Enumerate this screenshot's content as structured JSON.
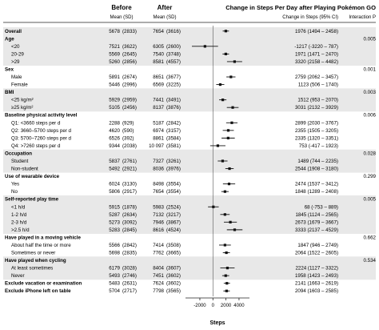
{
  "header": {
    "before": "Before",
    "after": "After",
    "before_sub": "Mean (SD)",
    "after_sub": "Mean (SD)",
    "title": "Change in Steps Per Day after Playing Pokémon GO",
    "change_sub": "Change in Steps (95% CI)",
    "interaction_sub": "Interaction P"
  },
  "xaxis": {
    "label": "Steps",
    "ticks": [
      -2000,
      0,
      2000,
      4000
    ],
    "xlim": [
      -4200,
      5600
    ]
  },
  "colors": {
    "shade": "#e8e8e8",
    "mark": "#111111",
    "zero_line": "#555555"
  },
  "chart_data": {
    "type": "forest",
    "xlabel": "Steps",
    "rows": [
      {
        "label": "Overall",
        "header": true,
        "n_before": "5678",
        "sd_before": "(2833)",
        "n_after": "7654",
        "sd_after": "(3616)",
        "est": 1976,
        "lo": 1494,
        "hi": 2458,
        "ci_text": "1976 (1494 – 2458)",
        "p": "",
        "shade": true
      },
      {
        "label": "Age",
        "header": true,
        "shade": true,
        "p": "0.005"
      },
      {
        "label": "<20",
        "sub": true,
        "n_before": "7521",
        "sd_before": "(3622)",
        "n_after": "6305",
        "sd_after": "(2600)",
        "est": -1217,
        "lo": -3220,
        "hi": 787,
        "ci_text": "-1217 (-3220 – 787)",
        "shade": true
      },
      {
        "label": "20-29",
        "sub": true,
        "n_before": "5569",
        "sd_before": "(2645)",
        "n_after": "7540",
        "sd_after": "(3748)",
        "est": 1971,
        "lo": 1471,
        "hi": 2470,
        "ci_text": "1971 (1471 – 2470)",
        "shade": true
      },
      {
        "label": ">29",
        "sub": true,
        "n_before": "5260",
        "sd_before": "(2856)",
        "n_after": "8581",
        "sd_after": "(4557)",
        "est": 3320,
        "lo": 2158,
        "hi": 4482,
        "ci_text": "3320 (2158 – 4482)",
        "shade": true
      },
      {
        "label": "Sex",
        "header": true,
        "p": "0.001"
      },
      {
        "label": "Male",
        "sub": true,
        "n_before": "5891",
        "sd_before": "(2674)",
        "n_after": "8651",
        "sd_after": "(3677)",
        "est": 2759,
        "lo": 2062,
        "hi": 3457,
        "ci_text": "2759 (2062 – 3457)"
      },
      {
        "label": "Female",
        "sub": true,
        "n_before": "5446",
        "sd_before": "(2996)",
        "n_after": "6569",
        "sd_after": "(3225)",
        "est": 1123,
        "lo": 506,
        "hi": 1740,
        "ci_text": "1123 (506 – 1740)"
      },
      {
        "label": "BMI",
        "header": true,
        "shade": true,
        "p": "0.003"
      },
      {
        "label": "<25 kg/m²",
        "sub": true,
        "n_before": "5929",
        "sd_before": "(2959)",
        "n_after": "7441",
        "sd_after": "(3491)",
        "est": 1512,
        "lo": 953,
        "hi": 2070,
        "ci_text": "1512 (953 – 2070)",
        "shade": true
      },
      {
        "label": "≥25 kg/m²",
        "sub": true,
        "n_before": "5105",
        "sd_before": "(2456)",
        "n_after": "8137",
        "sd_after": "(3876)",
        "est": 3031,
        "lo": 2132,
        "hi": 3929,
        "ci_text": "3031 (2132 – 3929)",
        "shade": true
      },
      {
        "label": "Baseline physical activity level",
        "header": true,
        "p": "0.006"
      },
      {
        "label": "Q1: <3660 steps per d",
        "sub": true,
        "n_before": "2288",
        "sd_before": "(929)",
        "n_after": "5187",
        "sd_after": "(2842)",
        "est": 2899,
        "lo": 2030,
        "hi": 3767,
        "ci_text": "2899 (2030 – 3767)"
      },
      {
        "label": "Q2: 3660–5700 steps per d",
        "sub": true,
        "n_before": "4620",
        "sd_before": "(590)",
        "n_after": "6974",
        "sd_after": "(3157)",
        "est": 2355,
        "lo": 1505,
        "hi": 3205,
        "ci_text": "2355 (1505 – 3205)"
      },
      {
        "label": "Q3: 5700–7260 steps per d",
        "sub": true,
        "n_before": "6526",
        "sd_before": "(392)",
        "n_after": "8861",
        "sd_after": "(3584)",
        "est": 2335,
        "lo": 1320,
        "hi": 3351,
        "ci_text": "2335 (1320 – 3351)"
      },
      {
        "label": "Q4: >7260 steps per d",
        "sub": true,
        "n_before": "9344",
        "sd_before": "(2038)",
        "n_after": "10 097",
        "sd_after": "(3581)",
        "est": 753,
        "lo": -417,
        "hi": 1923,
        "ci_text": "753 (-417 – 1923)"
      },
      {
        "label": "Occupation",
        "header": true,
        "shade": true,
        "p": "0.028"
      },
      {
        "label": "Student",
        "sub": true,
        "n_before": "5837",
        "sd_before": "(2761)",
        "n_after": "7327",
        "sd_after": "(3261)",
        "est": 1489,
        "lo": 744,
        "hi": 2235,
        "ci_text": "1489 (744 – 2235)",
        "shade": true
      },
      {
        "label": "Non-student",
        "sub": true,
        "n_before": "5492",
        "sd_before": "(2921)",
        "n_after": "8036",
        "sd_after": "(3976)",
        "est": 2544,
        "lo": 1908,
        "hi": 3180,
        "ci_text": "2544 (1908 – 3180)",
        "shade": true
      },
      {
        "label": "Use of wearable device",
        "header": true,
        "p": "0.299"
      },
      {
        "label": "Yes",
        "sub": true,
        "n_before": "6024",
        "sd_before": "(3130)",
        "n_after": "8498",
        "sd_after": "(3554)",
        "est": 2474,
        "lo": 1537,
        "hi": 3412,
        "ci_text": "2474 (1537 – 3412)"
      },
      {
        "label": "No",
        "sub": true,
        "n_before": "5806",
        "sd_before": "(2917)",
        "n_after": "7654",
        "sd_after": "(3554)",
        "est": 1848,
        "lo": 1289,
        "hi": 2408,
        "ci_text": "1848 (1289 – 2408)"
      },
      {
        "label": "Self-reported play time",
        "header": true,
        "shade": true,
        "p": "0.005"
      },
      {
        "label": "<1 h/d",
        "sub": true,
        "n_before": "5915",
        "sd_before": "(1878)",
        "n_after": "5983",
        "sd_after": "(2524)",
        "est": 68,
        "lo": -753,
        "hi": 889,
        "ci_text": "68 (-753 – 889)",
        "shade": true
      },
      {
        "label": "1-2 h/d",
        "sub": true,
        "n_before": "5287",
        "sd_before": "(2634)",
        "n_after": "7132",
        "sd_after": "(3217)",
        "est": 1845,
        "lo": 1124,
        "hi": 2565,
        "ci_text": "1845 (1124 – 2565)",
        "shade": true
      },
      {
        "label": "2-3 h/d",
        "sub": true,
        "n_before": "5273",
        "sd_before": "(3092)",
        "n_after": "7946",
        "sd_after": "(3867)",
        "est": 2673,
        "lo": 1679,
        "hi": 3667,
        "ci_text": "2673 (1679 – 3667)",
        "shade": true
      },
      {
        "label": ">2.5 h/d",
        "sub": true,
        "n_before": "5283",
        "sd_before": "(2845)",
        "n_after": "8616",
        "sd_after": "(4524)",
        "est": 3333,
        "lo": 2137,
        "hi": 4529,
        "ci_text": "3333 (2137 – 4529)",
        "shade": true
      },
      {
        "label": "Have played in a moving vehicle",
        "header": true,
        "p": "0.662"
      },
      {
        "label": "About half the time or more",
        "sub": true,
        "n_before": "5566",
        "sd_before": "(2842)",
        "n_after": "7414",
        "sd_after": "(3508)",
        "est": 1847,
        "lo": 946,
        "hi": 2749,
        "ci_text": "1847 (946 – 2749)"
      },
      {
        "label": "Sometimes or never",
        "sub": true,
        "n_before": "5698",
        "sd_before": "(2835)",
        "n_after": "7762",
        "sd_after": "(3665)",
        "est": 2064,
        "lo": 1522,
        "hi": 2605,
        "ci_text": "2064 (1522 – 2605)"
      },
      {
        "label": "Have played when cycling",
        "header": true,
        "shade": true,
        "p": "0.534"
      },
      {
        "label": "At least sometimes",
        "sub": true,
        "n_before": "6179",
        "sd_before": "(3028)",
        "n_after": "8404",
        "sd_after": "(3607)",
        "est": 2224,
        "lo": 1127,
        "hi": 3322,
        "ci_text": "2224 (1127 – 3322)",
        "shade": true
      },
      {
        "label": "Never",
        "sub": true,
        "n_before": "5493",
        "sd_before": "(2746)",
        "n_after": "7451",
        "sd_after": "(3602)",
        "est": 1958,
        "lo": 1423,
        "hi": 2493,
        "ci_text": "1958 (1423 – 2493)",
        "shade": true
      },
      {
        "label": "Exclude vacation or examination",
        "header": true,
        "n_before": "5483",
        "sd_before": "(2631)",
        "n_after": "7624",
        "sd_after": "(3602)",
        "est": 2141,
        "lo": 1663,
        "hi": 2619,
        "ci_text": "2141 (1663 – 2619)"
      },
      {
        "label": "Exclude iPhone left on table",
        "header": true,
        "n_before": "5704",
        "sd_before": "(2717)",
        "n_after": "7798",
        "sd_after": "(3565)",
        "est": 2094,
        "lo": 1603,
        "hi": 2585,
        "ci_text": "2094 (1603 – 2585)"
      }
    ]
  }
}
